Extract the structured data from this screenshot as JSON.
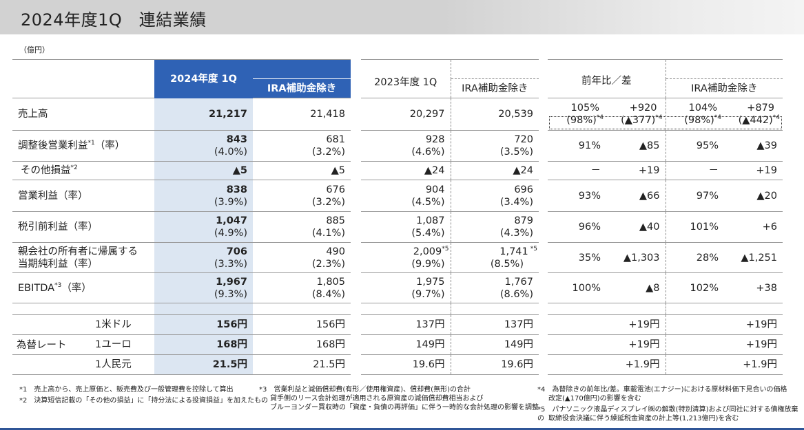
{
  "title": "2024年度1Q　連結業績",
  "unit": "（億円）",
  "headers": {
    "y2024": "2024年度 1Q",
    "y2024_ira": "IRA補助金除き",
    "y2023": "2023年度 1Q",
    "y2023_ira": "IRA補助金除き",
    "yoy": "前年比／差",
    "yoy_ira": "IRA補助金除き"
  },
  "rows": [
    {
      "label": "売上高",
      "sup": "",
      "c2024": [
        "21,217",
        ""
      ],
      "c2024ira": [
        "21,418",
        ""
      ],
      "c2023": [
        "20,297",
        ""
      ],
      "c2023ira": [
        "20,539",
        ""
      ],
      "yoy_pct": "105%",
      "yoy_diff": "+920",
      "ira_pct": "104%",
      "ira_diff": "+879",
      "yoy_pct2": "(98%)",
      "yoy_pct2_note": "*4",
      "yoy_diff2": "(▲377)",
      "yoy_diff2_note": "*4",
      "ira_pct2": "(98%)",
      "ira_pct2_note": "*4",
      "ira_diff2": "(▲442)",
      "ira_diff2_note": "*4"
    },
    {
      "label": "調整後営業利益",
      "sup": "*1",
      "label_suffix": "（率）",
      "c2024": [
        "843",
        "(4.0%)"
      ],
      "c2024ira": [
        "681",
        "(3.2%)"
      ],
      "c2023": [
        "928",
        "(4.6%)"
      ],
      "c2023ira": [
        "720",
        "(3.5%)"
      ],
      "yoy_pct": "91%",
      "yoy_diff": "▲85",
      "ira_pct": "95%",
      "ira_diff": "▲39"
    },
    {
      "label": "その他損益",
      "sup": "*2",
      "c2024": [
        "▲5",
        ""
      ],
      "c2024ira": [
        "▲5",
        ""
      ],
      "c2023": [
        "▲24",
        ""
      ],
      "c2023ira": [
        "▲24",
        ""
      ],
      "yoy_pct": "－",
      "yoy_diff": "+19",
      "ira_pct": "－",
      "ira_diff": "+19"
    },
    {
      "label": "営業利益（率）",
      "c2024": [
        "838",
        "(3.9%)"
      ],
      "c2024ira": [
        "676",
        "(3.2%)"
      ],
      "c2023": [
        "904",
        "(4.5%)"
      ],
      "c2023ira": [
        "696",
        "(3.4%)"
      ],
      "yoy_pct": "93%",
      "yoy_diff": "▲66",
      "ira_pct": "97%",
      "ira_diff": "▲20"
    },
    {
      "label": "税引前利益（率）",
      "c2024": [
        "1,047",
        "(4.9%)"
      ],
      "c2024ira": [
        "885",
        "(4.1%)"
      ],
      "c2023": [
        "1,087",
        "(5.4%)"
      ],
      "c2023ira": [
        "879",
        "(4.3%)"
      ],
      "yoy_pct": "96%",
      "yoy_diff": "▲40",
      "ira_pct": "101%",
      "ira_diff": "+6"
    },
    {
      "label": "親会社の所有者に帰属する",
      "label2": "当期純利益（率）",
      "c2024": [
        "706",
        "(3.3%)"
      ],
      "c2024ira": [
        "490",
        "(2.3%)"
      ],
      "c2023": [
        "2,009",
        "(9.9%)"
      ],
      "c2023_note": "*5",
      "c2023ira": [
        "1,741",
        "(8.5%)"
      ],
      "c2023ira_note": "*5",
      "yoy_pct": "35%",
      "yoy_diff": "▲1,303",
      "ira_pct": "28%",
      "ira_diff": "▲1,251"
    },
    {
      "label": "EBITDA",
      "sup": "*3",
      "label_suffix": "（率）",
      "c2024": [
        "1,967",
        "(9.3%)"
      ],
      "c2024ira": [
        "1,805",
        "(8.4%)"
      ],
      "c2023": [
        "1,975",
        "(9.7%)"
      ],
      "c2023ira": [
        "1,767",
        "(8.6%)"
      ],
      "yoy_pct": "100%",
      "yoy_diff": "▲8",
      "ira_pct": "102%",
      "ira_diff": "+38"
    }
  ],
  "fx": {
    "label": "為替レート",
    "rows": [
      {
        "name": "1米ドル",
        "c2024": "156円",
        "c2024ira": "156円",
        "c2023": "137円",
        "c2023ira": "137円",
        "yoy": "+19円",
        "ira": "+19円"
      },
      {
        "name": "1ユーロ",
        "c2024": "168円",
        "c2024ira": "168円",
        "c2023": "149円",
        "c2023ira": "149円",
        "yoy": "+19円",
        "ira": "+19円"
      },
      {
        "name": "1人民元",
        "c2024": "21.5円",
        "c2024ira": "21.5円",
        "c2023": "19.6円",
        "c2023ira": "19.6円",
        "yoy": "+1.9円",
        "ira": "+1.9円"
      }
    ]
  },
  "footnotes": {
    "n1": "*1　売上高から、売上原価と、販売費及び一般管理費を控除して算出",
    "n2": "*2　決算短信記載の「その他の損益」に「持分法による投資損益」を加えたもの",
    "n3a": "*3　営業利益と減価償却費(有形／使用権資産)、償却費(無形)の合計",
    "n3b": "貸手側のリース会計処理が適用される原資産の減価償却費相当および",
    "n3c": "ブルーヨンダー買収時の「資産・負債の再評価」に伴う一時的な会計処理の影響を調整",
    "n4a": "*4　為替除きの前年比/差。車載電池(エナジー)における原材料価下見合いの価格",
    "n4b": "改定(▲170億円)の影響を含む",
    "n5a": "*5　パナソニック液晶ディスプレイ㈱の解散(特別清算)および同社に対する債権放棄の",
    "n5b": "取締役会決議に伴う繰延税金資産の計上等(1,213億円)を含む"
  }
}
